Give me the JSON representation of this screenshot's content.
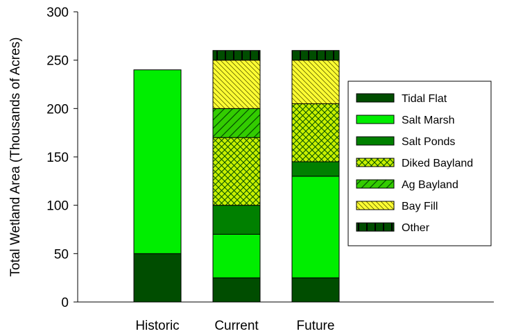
{
  "chart_data": {
    "type": "bar",
    "stacked": true,
    "title": "",
    "xlabel": "",
    "ylabel": "Total Wetland Area (Thousands of Acres)",
    "ylim": [
      0,
      300
    ],
    "yticks": [
      0,
      50,
      100,
      150,
      200,
      250,
      300
    ],
    "grid": false,
    "legend_position": "right",
    "categories": [
      "Historic",
      "Current",
      "Future"
    ],
    "series": [
      {
        "name": "Tidal Flat",
        "values": [
          50,
          25,
          25
        ],
        "color": "#004d00",
        "pattern": "solid"
      },
      {
        "name": "Salt Marsh",
        "values": [
          190,
          45,
          105
        ],
        "color": "#00ee00",
        "pattern": "solid"
      },
      {
        "name": "Salt Ponds",
        "values": [
          0,
          30,
          15
        ],
        "color": "#008000",
        "pattern": "solid"
      },
      {
        "name": "Diked Bayland",
        "values": [
          0,
          70,
          60
        ],
        "color": "#c8f000",
        "pattern": "crosshatch"
      },
      {
        "name": "Ag Bayland",
        "values": [
          0,
          30,
          0
        ],
        "color": "#33cc00",
        "pattern": "diagonal-forward"
      },
      {
        "name": "Bay Fill",
        "values": [
          0,
          50,
          45
        ],
        "color": "#ffff33",
        "pattern": "diagonal-back"
      },
      {
        "name": "Other",
        "values": [
          0,
          10,
          10
        ],
        "color": "#004d00",
        "pattern": "vertical-bars"
      }
    ]
  }
}
